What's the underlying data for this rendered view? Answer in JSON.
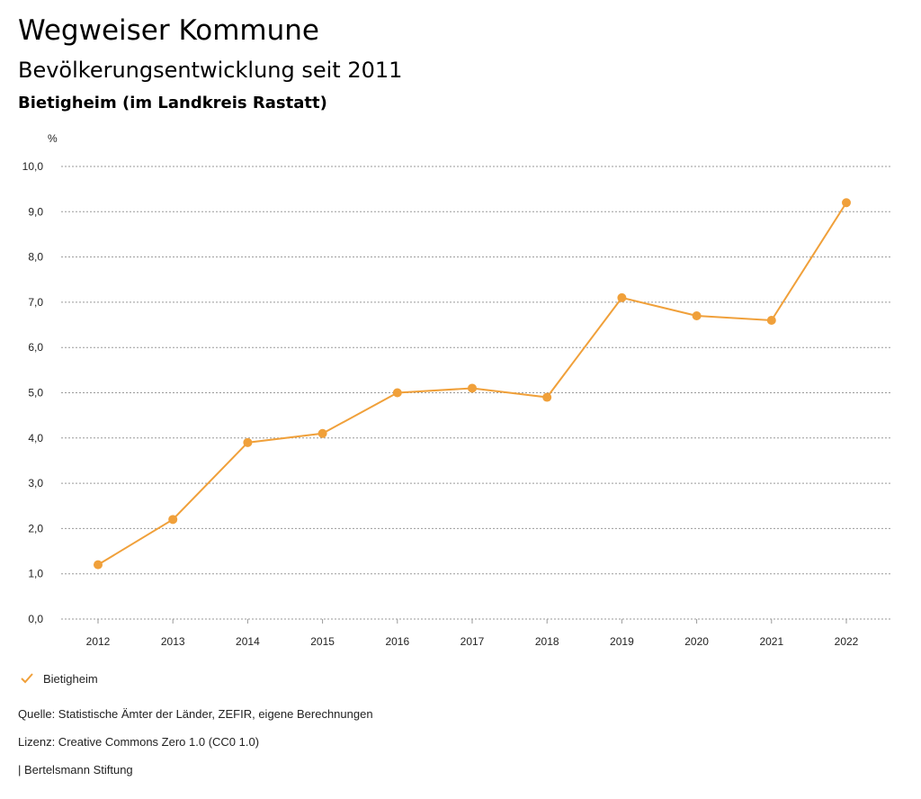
{
  "header": {
    "title": "Wegweiser Kommune",
    "subtitle": "Bevölkerungsentwicklung seit 2011",
    "region": "Bietigheim (im Landkreis Rastatt)"
  },
  "chart_data": {
    "type": "line",
    "ylabel": "%",
    "ylim": [
      0,
      10
    ],
    "yticks": [
      "0,0",
      "1,0",
      "2,0",
      "3,0",
      "4,0",
      "5,0",
      "6,0",
      "7,0",
      "8,0",
      "9,0",
      "10,0"
    ],
    "x": [
      "2012",
      "2013",
      "2014",
      "2015",
      "2016",
      "2017",
      "2018",
      "2019",
      "2020",
      "2021",
      "2022"
    ],
    "series": [
      {
        "name": "Bietigheim",
        "color": "#f0a03a",
        "values": [
          1.2,
          2.2,
          3.9,
          4.1,
          5.0,
          5.1,
          4.9,
          7.1,
          6.7,
          6.6,
          9.2
        ]
      }
    ],
    "grid": true,
    "legend": "bottom-left"
  },
  "legend": {
    "label": "Bietigheim",
    "icon": "check-icon"
  },
  "footer": {
    "source": "Quelle: Statistische Ämter der Länder, ZEFIR, eigene Berechnungen",
    "license": "Lizenz: Creative Commons Zero 1.0 (CC0 1.0)",
    "publisher": "| Bertelsmann Stiftung"
  }
}
